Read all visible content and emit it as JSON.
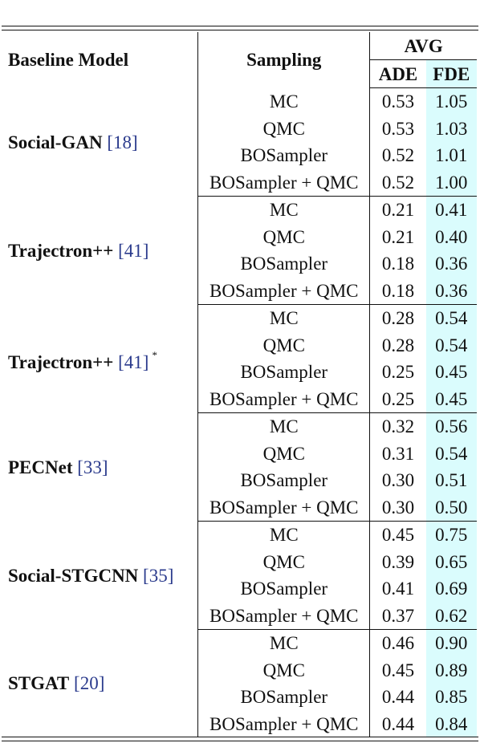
{
  "table": {
    "headers": {
      "baseline_model": "Baseline Model",
      "sampling": "Sampling",
      "avg": "AVG",
      "ade": "ADE",
      "fde": "FDE"
    },
    "groups": [
      {
        "model": "Social-GAN",
        "ref": "18",
        "star": "",
        "rows": [
          {
            "sampling": "MC",
            "ade": "0.53",
            "fde": "1.05"
          },
          {
            "sampling": "QMC",
            "ade": "0.53",
            "fde": "1.03"
          },
          {
            "sampling": "BOSampler",
            "ade": "0.52",
            "fde": "1.01"
          },
          {
            "sampling": "BOSampler + QMC",
            "ade": "0.52",
            "fde": "1.00"
          }
        ]
      },
      {
        "model": "Trajectron++",
        "ref": "41",
        "star": "",
        "rows": [
          {
            "sampling": "MC",
            "ade": "0.21",
            "fde": "0.41"
          },
          {
            "sampling": "QMC",
            "ade": "0.21",
            "fde": "0.40"
          },
          {
            "sampling": "BOSampler",
            "ade": "0.18",
            "fde": "0.36"
          },
          {
            "sampling": "BOSampler + QMC",
            "ade": "0.18",
            "fde": "0.36"
          }
        ]
      },
      {
        "model": "Trajectron++",
        "ref": "41",
        "star": "*",
        "rows": [
          {
            "sampling": "MC",
            "ade": "0.28",
            "fde": "0.54"
          },
          {
            "sampling": "QMC",
            "ade": "0.28",
            "fde": "0.54"
          },
          {
            "sampling": "BOSampler",
            "ade": "0.25",
            "fde": "0.45"
          },
          {
            "sampling": "BOSampler + QMC",
            "ade": "0.25",
            "fde": "0.45"
          }
        ]
      },
      {
        "model": "PECNet",
        "ref": "33",
        "star": "",
        "rows": [
          {
            "sampling": "MC",
            "ade": "0.32",
            "fde": "0.56"
          },
          {
            "sampling": "QMC",
            "ade": "0.31",
            "fde": "0.54"
          },
          {
            "sampling": "BOSampler",
            "ade": "0.30",
            "fde": "0.51"
          },
          {
            "sampling": "BOSampler + QMC",
            "ade": "0.30",
            "fde": "0.50"
          }
        ]
      },
      {
        "model": "Social-STGCNN",
        "ref": "35",
        "star": "",
        "rows": [
          {
            "sampling": "MC",
            "ade": "0.45",
            "fde": "0.75"
          },
          {
            "sampling": "QMC",
            "ade": "0.39",
            "fde": "0.65"
          },
          {
            "sampling": "BOSampler",
            "ade": "0.41",
            "fde": "0.69"
          },
          {
            "sampling": "BOSampler + QMC",
            "ade": "0.37",
            "fde": "0.62"
          }
        ]
      },
      {
        "model": "STGAT",
        "ref": "20",
        "star": "",
        "rows": [
          {
            "sampling": "MC",
            "ade": "0.46",
            "fde": "0.90"
          },
          {
            "sampling": "QMC",
            "ade": "0.45",
            "fde": "0.89"
          },
          {
            "sampling": "BOSampler",
            "ade": "0.44",
            "fde": "0.85"
          },
          {
            "sampling": "BOSampler + QMC",
            "ade": "0.44",
            "fde": "0.84"
          }
        ]
      }
    ]
  }
}
